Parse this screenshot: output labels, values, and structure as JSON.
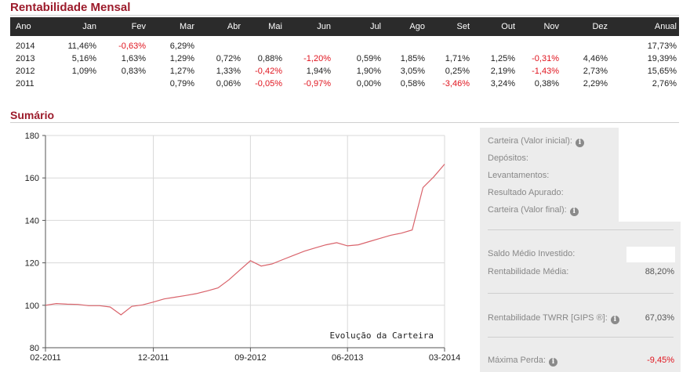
{
  "sections": {
    "monthly_title": "Rentabilidade Mensal",
    "summary_title": "Sumário"
  },
  "table": {
    "headers": [
      "Ano",
      "Jan",
      "Fev",
      "Mar",
      "Abr",
      "Mai",
      "Jun",
      "Jul",
      "Ago",
      "Set",
      "Out",
      "Nov",
      "Dez",
      "Anual"
    ],
    "rows": [
      {
        "year": "2014",
        "cells": [
          "11,46%",
          "-0,63%",
          "6,29%",
          "",
          "",
          "",
          "",
          "",
          "",
          "",
          "",
          "",
          "17,73%"
        ]
      },
      {
        "year": "2013",
        "cells": [
          "5,16%",
          "1,63%",
          "1,29%",
          "0,72%",
          "0,88%",
          "-1,20%",
          "0,59%",
          "1,85%",
          "1,71%",
          "1,25%",
          "-0,31%",
          "4,46%",
          "19,39%"
        ]
      },
      {
        "year": "2012",
        "cells": [
          "1,09%",
          "0,83%",
          "1,27%",
          "1,33%",
          "-0,42%",
          "1,94%",
          "1,90%",
          "3,05%",
          "0,25%",
          "2,19%",
          "-1,43%",
          "2,73%",
          "15,65%"
        ]
      },
      {
        "year": "2011",
        "cells": [
          "",
          "",
          "0,79%",
          "0,06%",
          "-0,05%",
          "-0,97%",
          "0,00%",
          "0,58%",
          "-3,46%",
          "3,24%",
          "0,38%",
          "2,29%",
          "2,76%"
        ]
      }
    ],
    "negative_color": "#e0141e",
    "header_bg": "#2b2b2b"
  },
  "chart_data": {
    "type": "line",
    "title": "Evolução da Carteira",
    "xlabel": "",
    "ylabel": "",
    "ylim": [
      80,
      180
    ],
    "yticks": [
      80,
      100,
      120,
      140,
      160,
      180
    ],
    "xticks": [
      "02-2011",
      "12-2011",
      "09-2012",
      "06-2013",
      "03-2014"
    ],
    "xlim": [
      "2011-02",
      "2014-03"
    ],
    "grid": true,
    "color": "#d9636b",
    "series": [
      {
        "name": "",
        "x": [
          "2011-02",
          "2011-03",
          "2011-04",
          "2011-05",
          "2011-06",
          "2011-07",
          "2011-08",
          "2011-09",
          "2011-10",
          "2011-11",
          "2011-12",
          "2012-01",
          "2012-02",
          "2012-03",
          "2012-04",
          "2012-05",
          "2012-06",
          "2012-07",
          "2012-08",
          "2012-09",
          "2012-10",
          "2012-11",
          "2012-12",
          "2013-01",
          "2013-02",
          "2013-03",
          "2013-04",
          "2013-05",
          "2013-06",
          "2013-07",
          "2013-08",
          "2013-09",
          "2013-10",
          "2013-11",
          "2013-12",
          "2014-01",
          "2014-02",
          "2014-03"
        ],
        "values": [
          100,
          100.8,
          100.5,
          100.4,
          99.8,
          99.8,
          99.2,
          95.5,
          99.5,
          100.2,
          101.5,
          103.0,
          103.8,
          104.6,
          105.5,
          106.8,
          108.2,
          112.0,
          116.5,
          121.0,
          118.5,
          119.5,
          121.5,
          123.5,
          125.5,
          127.0,
          128.5,
          129.5,
          128.0,
          128.5,
          130.0,
          131.5,
          133.0,
          134.0,
          135.5,
          155.5,
          160.5,
          166.5
        ]
      }
    ]
  },
  "summary": {
    "items": [
      {
        "label": "Carteira (Valor inicial):",
        "info": true,
        "value": ""
      },
      {
        "label": "Depósitos:",
        "info": false,
        "value": ""
      },
      {
        "label": "Levantamentos:",
        "info": false,
        "value": ""
      },
      {
        "label": "Resultado Apurado:",
        "info": false,
        "value": ""
      },
      {
        "label": "Carteira (Valor final):",
        "info": true,
        "value": ""
      },
      {
        "label": "Saldo Médio Investido:",
        "info": false,
        "value": ""
      },
      {
        "label": "Rentabilidade Média:",
        "info": false,
        "value": "88,20%"
      },
      {
        "label": "Rentabilidade TWRR [GIPS ®]:",
        "info": true,
        "value": "67,03%"
      },
      {
        "label": "Máxima Perda:",
        "info": true,
        "value": "-9,45%"
      }
    ],
    "info_icon_glyph": "i"
  }
}
